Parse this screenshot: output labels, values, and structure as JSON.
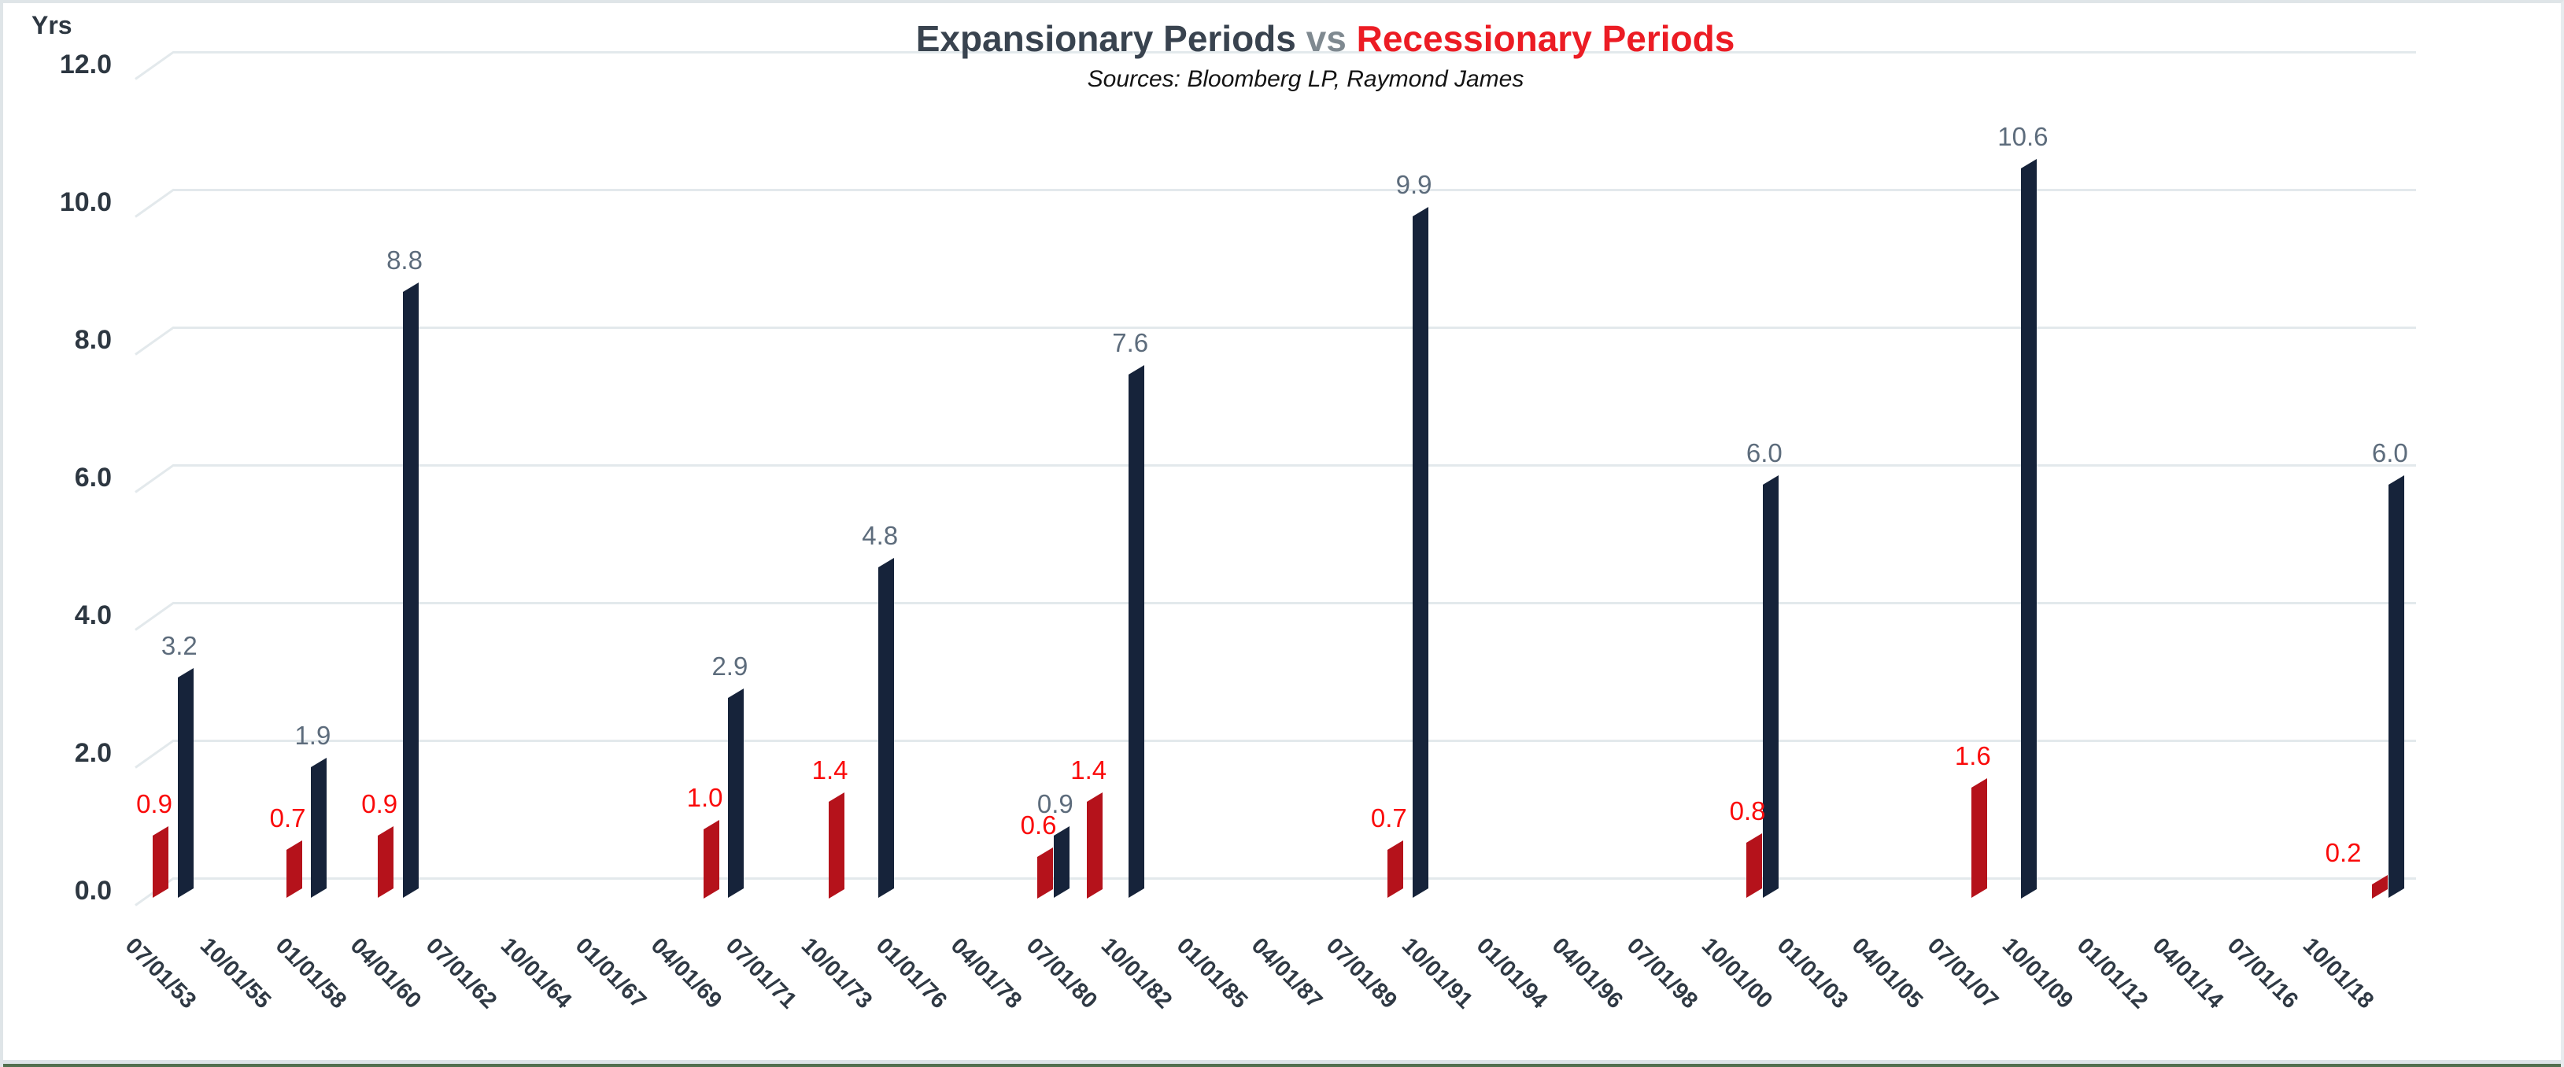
{
  "title": {
    "part1": "Expansionary Periods",
    "separator": " vs ",
    "part2": "Recessionary Periods",
    "subtitle": "Sources: Bloomberg LP, Raymond James",
    "part1_color": "#39434f",
    "separator_color": "#7f8990",
    "part2_color": "#ec1c24"
  },
  "chart_data": {
    "type": "bar",
    "title": "Expansionary Periods vs Recessionary Periods",
    "subtitle": "Sources: Bloomberg LP, Raymond James",
    "ylabel": "Yrs",
    "ylim": [
      0,
      12
    ],
    "ytick_step": 2,
    "ytick_labels": [
      "12.0",
      "10.0",
      "8.0",
      "6.0",
      "4.0",
      "2.0",
      "0.0"
    ],
    "grid": true,
    "legend_position": "none",
    "style": "excel-3d-perspective-bars",
    "x_axis": {
      "unit": "quarterly dates (period start)",
      "first_quarter": "07/01/53",
      "tick_every_quarters": 9,
      "tick_labels": [
        "07/01/53",
        "10/01/55",
        "01/01/58",
        "04/01/60",
        "07/01/62",
        "10/01/64",
        "01/01/67",
        "04/01/69",
        "07/01/71",
        "10/01/73",
        "01/01/76",
        "04/01/78",
        "07/01/80",
        "10/01/82",
        "01/01/85",
        "04/01/87",
        "07/01/89",
        "10/01/91",
        "01/01/94",
        "04/01/96",
        "07/01/98",
        "10/01/00",
        "01/01/03",
        "04/01/05",
        "07/01/07",
        "10/01/09",
        "01/01/12",
        "04/01/14",
        "07/01/16",
        "10/01/18"
      ]
    },
    "series": [
      {
        "name": "Recessionary Periods",
        "bar_color": "#b5121b",
        "label_color": "#fa0a0a",
        "points": [
          {
            "x": "07/01/53",
            "q": 0,
            "value": 0.9
          },
          {
            "x": "07/01/57",
            "q": 16,
            "value": 0.7
          },
          {
            "x": "04/01/60",
            "q": 27,
            "value": 0.9
          },
          {
            "x": "01/01/70",
            "q": 66,
            "value": 1.0
          },
          {
            "x": "10/01/73",
            "q": 81,
            "value": 1.4
          },
          {
            "x": "01/01/80",
            "q": 106,
            "value": 0.6
          },
          {
            "x": "07/01/81",
            "q": 112,
            "value": 1.4
          },
          {
            "x": "07/01/90",
            "q": 148,
            "value": 0.7
          },
          {
            "x": "04/01/01",
            "q": 191,
            "value": 0.8
          },
          {
            "x": "01/01/08",
            "q": 218,
            "value": 1.6
          },
          {
            "x": "01/01/20",
            "q": 266,
            "value": 0.2,
            "label_dx": -38
          }
        ]
      },
      {
        "name": "Expansionary Periods",
        "bar_color": "#16233a",
        "label_color": "#5d6c7c",
        "points": [
          {
            "x": "04/01/54",
            "q": 3,
            "value": 3.2
          },
          {
            "x": "04/01/58",
            "q": 19,
            "value": 1.9
          },
          {
            "x": "01/01/61",
            "q": 30,
            "value": 8.8
          },
          {
            "x": "10/01/70",
            "q": 69,
            "value": 2.9
          },
          {
            "x": "04/01/75",
            "q": 87,
            "value": 4.8
          },
          {
            "x": "07/01/80",
            "q": 108,
            "value": 0.9
          },
          {
            "x": "10/01/82",
            "q": 117,
            "value": 7.6
          },
          {
            "x": "04/01/91",
            "q": 151,
            "value": 9.9
          },
          {
            "x": "10/01/01",
            "q": 193,
            "value": 6.0
          },
          {
            "x": "07/01/09",
            "q": 224,
            "value": 10.6
          },
          {
            "x": "07/01/20",
            "q": 268,
            "value": 6.0
          }
        ]
      }
    ]
  }
}
